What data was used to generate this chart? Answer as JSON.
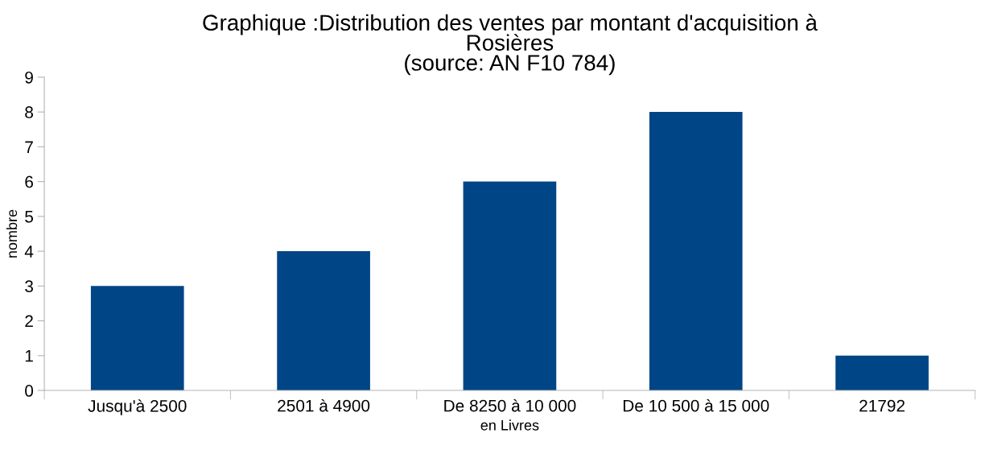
{
  "chart_data": {
    "type": "bar",
    "title": "Graphique :Distribution des ventes par montant d'acquisition à\nRosières\n(source: AN F10 784)",
    "xlabel": "en Livres",
    "ylabel": "nombre",
    "categories": [
      "Jusqu'à 2500",
      "2501 à 4900",
      "De 8250 à 10 000",
      "De 10 500 à 15 000",
      "21792"
    ],
    "values": [
      3,
      4,
      6,
      8,
      1
    ],
    "color": "#004586",
    "ylim": [
      0,
      9
    ],
    "yticks": [
      0,
      1,
      2,
      3,
      4,
      5,
      6,
      7,
      8,
      9
    ],
    "grid": false,
    "legend": false
  }
}
